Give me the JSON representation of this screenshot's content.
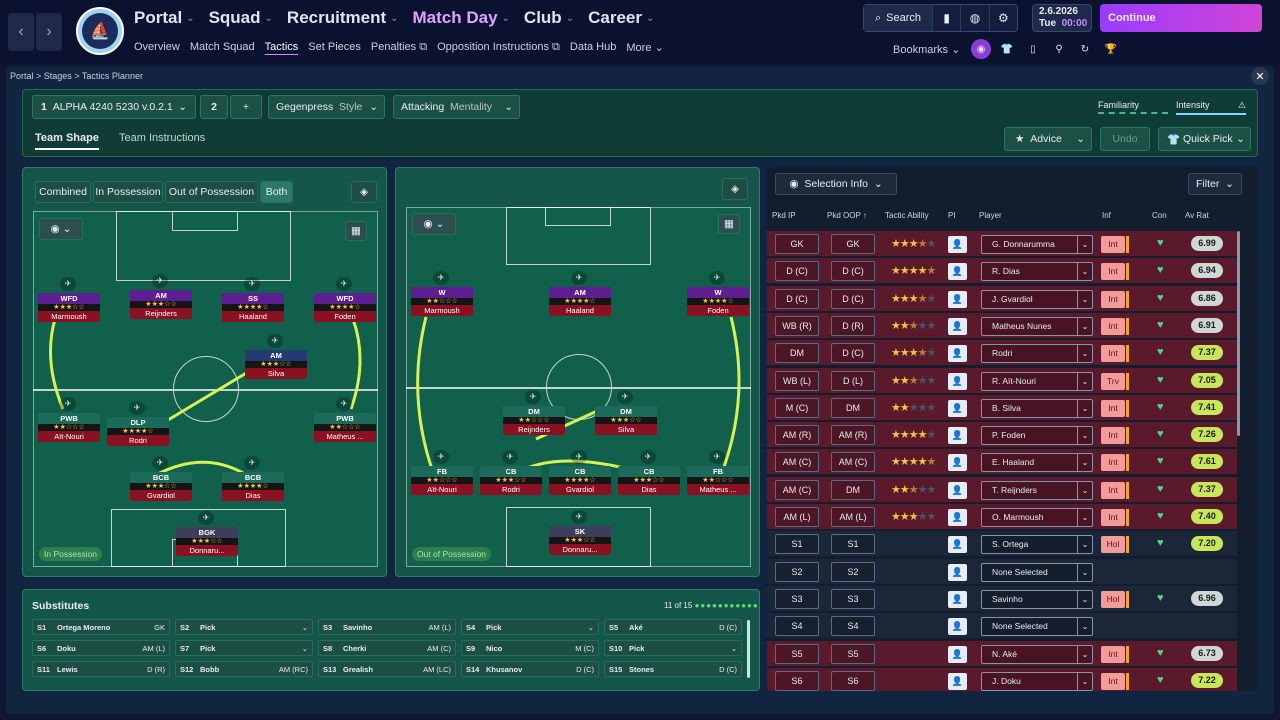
{
  "nav": {
    "back": "‹",
    "forward": "›",
    "items": [
      {
        "label": "Portal",
        "active": false
      },
      {
        "label": "Squad",
        "active": false
      },
      {
        "label": "Recruitment",
        "active": false
      },
      {
        "label": "Match Day",
        "active": true
      },
      {
        "label": "Club",
        "active": false
      },
      {
        "label": "Career",
        "active": false
      }
    ],
    "sub": [
      "Overview",
      "Match Squad",
      "Tactics",
      "Set Pieces",
      "Penalties",
      "Opposition Instructions",
      "Data Hub",
      "More"
    ],
    "search_label": "Search",
    "date": "2.6.2026",
    "day": "Tue",
    "time": "00:00",
    "continue_label": "Continue",
    "bookmarks_label": "Bookmarks",
    "club_badge_text": "MANCHESTER CITY"
  },
  "breadcrumb": [
    "Portal",
    "Stages",
    "Tactics Planner"
  ],
  "tactic": {
    "number": "1",
    "name": "ALPHA 4240 5230 v.0.2.1",
    "slot2": "2",
    "add": "+",
    "style_value": "Gegenpress",
    "style_label": "Style",
    "mentality_value": "Attacking",
    "mentality_label": "Mentality",
    "familiarity_label": "Familiarity",
    "intensity_label": "Intensity",
    "tabs": [
      "Team Shape",
      "Team Instructions"
    ],
    "advice_label": "Advice",
    "undo_label": "Undo",
    "quickpick_label": "Quick Pick"
  },
  "left_pitch": {
    "segments": [
      "Combined",
      "In Possession",
      "Out of Possession",
      "Both"
    ],
    "badge": "In Possession",
    "players": [
      {
        "role": "WFD",
        "stars": "★★★☆☆",
        "name": "Marmoush",
        "color": "purple"
      },
      {
        "role": "AM",
        "stars": "★★★☆☆",
        "name": "Reijnders",
        "color": "purple"
      },
      {
        "role": "SS",
        "stars": "★★★★☆",
        "name": "Haaland",
        "color": "purple"
      },
      {
        "role": "WFD",
        "stars": "★★★★☆",
        "name": "Foden",
        "color": "purple"
      },
      {
        "role": "AM",
        "stars": "★★★☆☆",
        "name": "Silva",
        "color": "navy"
      },
      {
        "role": "PWB",
        "stars": "★★☆☆☆",
        "name": "Aït-Nouri",
        "color": "teal"
      },
      {
        "role": "DLP",
        "stars": "★★★★☆",
        "name": "Rodri",
        "color": "teal"
      },
      {
        "role": "PWB",
        "stars": "★★☆☆☆",
        "name": "Matheus ...",
        "color": "teal"
      },
      {
        "role": "BCB",
        "stars": "★★★☆☆",
        "name": "Gvardiol",
        "color": "teal"
      },
      {
        "role": "BCB",
        "stars": "★★★★☆",
        "name": "Dias",
        "color": "teal"
      },
      {
        "role": "BGK",
        "stars": "★★★☆☆",
        "name": "Donnaru...",
        "color": "grey"
      }
    ]
  },
  "mid_pitch": {
    "badge": "Out of Possession",
    "players": [
      {
        "role": "W",
        "stars": "★★☆☆☆",
        "name": "Marmoush",
        "color": "purple"
      },
      {
        "role": "AM",
        "stars": "★★★★☆",
        "name": "Haaland",
        "color": "purple"
      },
      {
        "role": "W",
        "stars": "★★★★☆",
        "name": "Foden",
        "color": "purple"
      },
      {
        "role": "DM",
        "stars": "★★☆☆☆",
        "name": "Reijnders",
        "color": "teal"
      },
      {
        "role": "DM",
        "stars": "★★★☆☆",
        "name": "Silva",
        "color": "teal"
      },
      {
        "role": "FB",
        "stars": "★★☆☆☆",
        "name": "Aït-Nouri",
        "color": "teal"
      },
      {
        "role": "CB",
        "stars": "★★★☆☆",
        "name": "Rodri",
        "color": "teal"
      },
      {
        "role": "CB",
        "stars": "★★★★☆",
        "name": "Gvardiol",
        "color": "teal"
      },
      {
        "role": "CB",
        "stars": "★★★☆☆",
        "name": "Dias",
        "color": "teal"
      },
      {
        "role": "FB",
        "stars": "★★☆☆☆",
        "name": "Matheus ...",
        "color": "teal"
      },
      {
        "role": "SK",
        "stars": "★★★☆☆",
        "name": "Donnaru...",
        "color": "grey"
      }
    ]
  },
  "subs": {
    "title": "Substitutes",
    "count": "11 of 15",
    "slots": [
      {
        "code": "S1",
        "name": "Ortega Moreno",
        "pos": "GK"
      },
      {
        "code": "S2",
        "name": "Pick",
        "pos": "⌄"
      },
      {
        "code": "S3",
        "name": "Savinho",
        "pos": "AM (L)"
      },
      {
        "code": "S4",
        "name": "Pick",
        "pos": "⌄"
      },
      {
        "code": "S5",
        "name": "Aké",
        "pos": "D (C)"
      },
      {
        "code": "S6",
        "name": "Doku",
        "pos": "AM (L)"
      },
      {
        "code": "S7",
        "name": "Pick",
        "pos": "⌄"
      },
      {
        "code": "S8",
        "name": "Cherki",
        "pos": "AM (C)"
      },
      {
        "code": "S9",
        "name": "Nico",
        "pos": "M (C)"
      },
      {
        "code": "S10",
        "name": "Pick",
        "pos": "⌄"
      },
      {
        "code": "S11",
        "name": "Lewis",
        "pos": "D (R)"
      },
      {
        "code": "S12",
        "name": "Bobb",
        "pos": "AM (RC)"
      },
      {
        "code": "S13",
        "name": "Grealish",
        "pos": "AM (LC)"
      },
      {
        "code": "S14",
        "name": "Khusanov",
        "pos": "D (C)"
      },
      {
        "code": "S15",
        "name": "Stones",
        "pos": "D (C)"
      }
    ]
  },
  "selection": {
    "info_label": "Selection Info",
    "filter_label": "Filter",
    "headers": [
      "Pkd IP",
      "Pkd OOP",
      "Tactic Ability",
      "PI",
      "Player",
      "Inf",
      "Con",
      "Av Rat"
    ],
    "rows": [
      {
        "ip": "GK",
        "oop": "GK",
        "stars": 3.5,
        "player": "G. Donnarumma",
        "inf": "Int",
        "rating": "6.99",
        "bg": "#5a1a2c"
      },
      {
        "ip": "D (C)",
        "oop": "D (C)",
        "stars": 4.5,
        "player": "R. Dias",
        "inf": "Int",
        "rating": "6.94",
        "bg": "#5a1a2c"
      },
      {
        "ip": "D (C)",
        "oop": "D (C)",
        "stars": 3.5,
        "player": "J. Gvardiol",
        "inf": "Int",
        "rating": "6.86",
        "bg": "#5a1a2c"
      },
      {
        "ip": "WB (R)",
        "oop": "D (R)",
        "stars": 2.5,
        "player": "Matheus Nunes",
        "inf": "Int",
        "rating": "6.91",
        "bg": "#5a1a2c"
      },
      {
        "ip": "DM",
        "oop": "D (C)",
        "stars": 3.5,
        "player": "Rodri",
        "inf": "Int",
        "rating": "7.37",
        "bg": "#5a1a2c"
      },
      {
        "ip": "WB (L)",
        "oop": "D (L)",
        "stars": 2.5,
        "player": "R. Aït-Nouri",
        "inf": "Trv",
        "rating": "7.05",
        "bg": "#5a1a2c"
      },
      {
        "ip": "M (C)",
        "oop": "DM",
        "stars": 2,
        "player": "B. Silva",
        "inf": "Int",
        "rating": "7.41",
        "bg": "#5a1a2c"
      },
      {
        "ip": "AM (R)",
        "oop": "AM (R)",
        "stars": 4,
        "player": "P. Foden",
        "inf": "Int",
        "rating": "7.26",
        "bg": "#5a1a2c"
      },
      {
        "ip": "AM (C)",
        "oop": "AM (C)",
        "stars": 4.5,
        "player": "E. Haaland",
        "inf": "Int",
        "rating": "7.61",
        "bg": "#5a1a2c"
      },
      {
        "ip": "AM (C)",
        "oop": "DM",
        "stars": 2.5,
        "player": "T. Reijnders",
        "inf": "Int",
        "rating": "7.37",
        "bg": "#5a1a2c"
      },
      {
        "ip": "AM (L)",
        "oop": "AM (L)",
        "stars": 3,
        "player": "O. Marmoush",
        "inf": "Int",
        "rating": "7.40",
        "bg": "#5a1a2c"
      },
      {
        "ip": "S1",
        "oop": "S1",
        "stars": 0,
        "player": "S. Ortega",
        "inf": "Hol",
        "rating": "7.20",
        "bg": "#1b2638"
      },
      {
        "ip": "S2",
        "oop": "S2",
        "stars": 0,
        "player": "None Selected",
        "inf": "",
        "rating": "",
        "bg": "#1b2638"
      },
      {
        "ip": "S3",
        "oop": "S3",
        "stars": 0,
        "player": "Savinho",
        "inf": "Hol",
        "rating": "6.96",
        "bg": "#1b2638"
      },
      {
        "ip": "S4",
        "oop": "S4",
        "stars": 0,
        "player": "None Selected",
        "inf": "",
        "rating": "",
        "bg": "#1b2638"
      },
      {
        "ip": "S5",
        "oop": "S5",
        "stars": 0,
        "player": "N. Aké",
        "inf": "Int",
        "rating": "6.73",
        "bg": "#5a1a2c"
      },
      {
        "ip": "S6",
        "oop": "S6",
        "stars": 0,
        "player": "J. Doku",
        "inf": "Int",
        "rating": "7.22",
        "bg": "#5a1a2c"
      }
    ]
  }
}
